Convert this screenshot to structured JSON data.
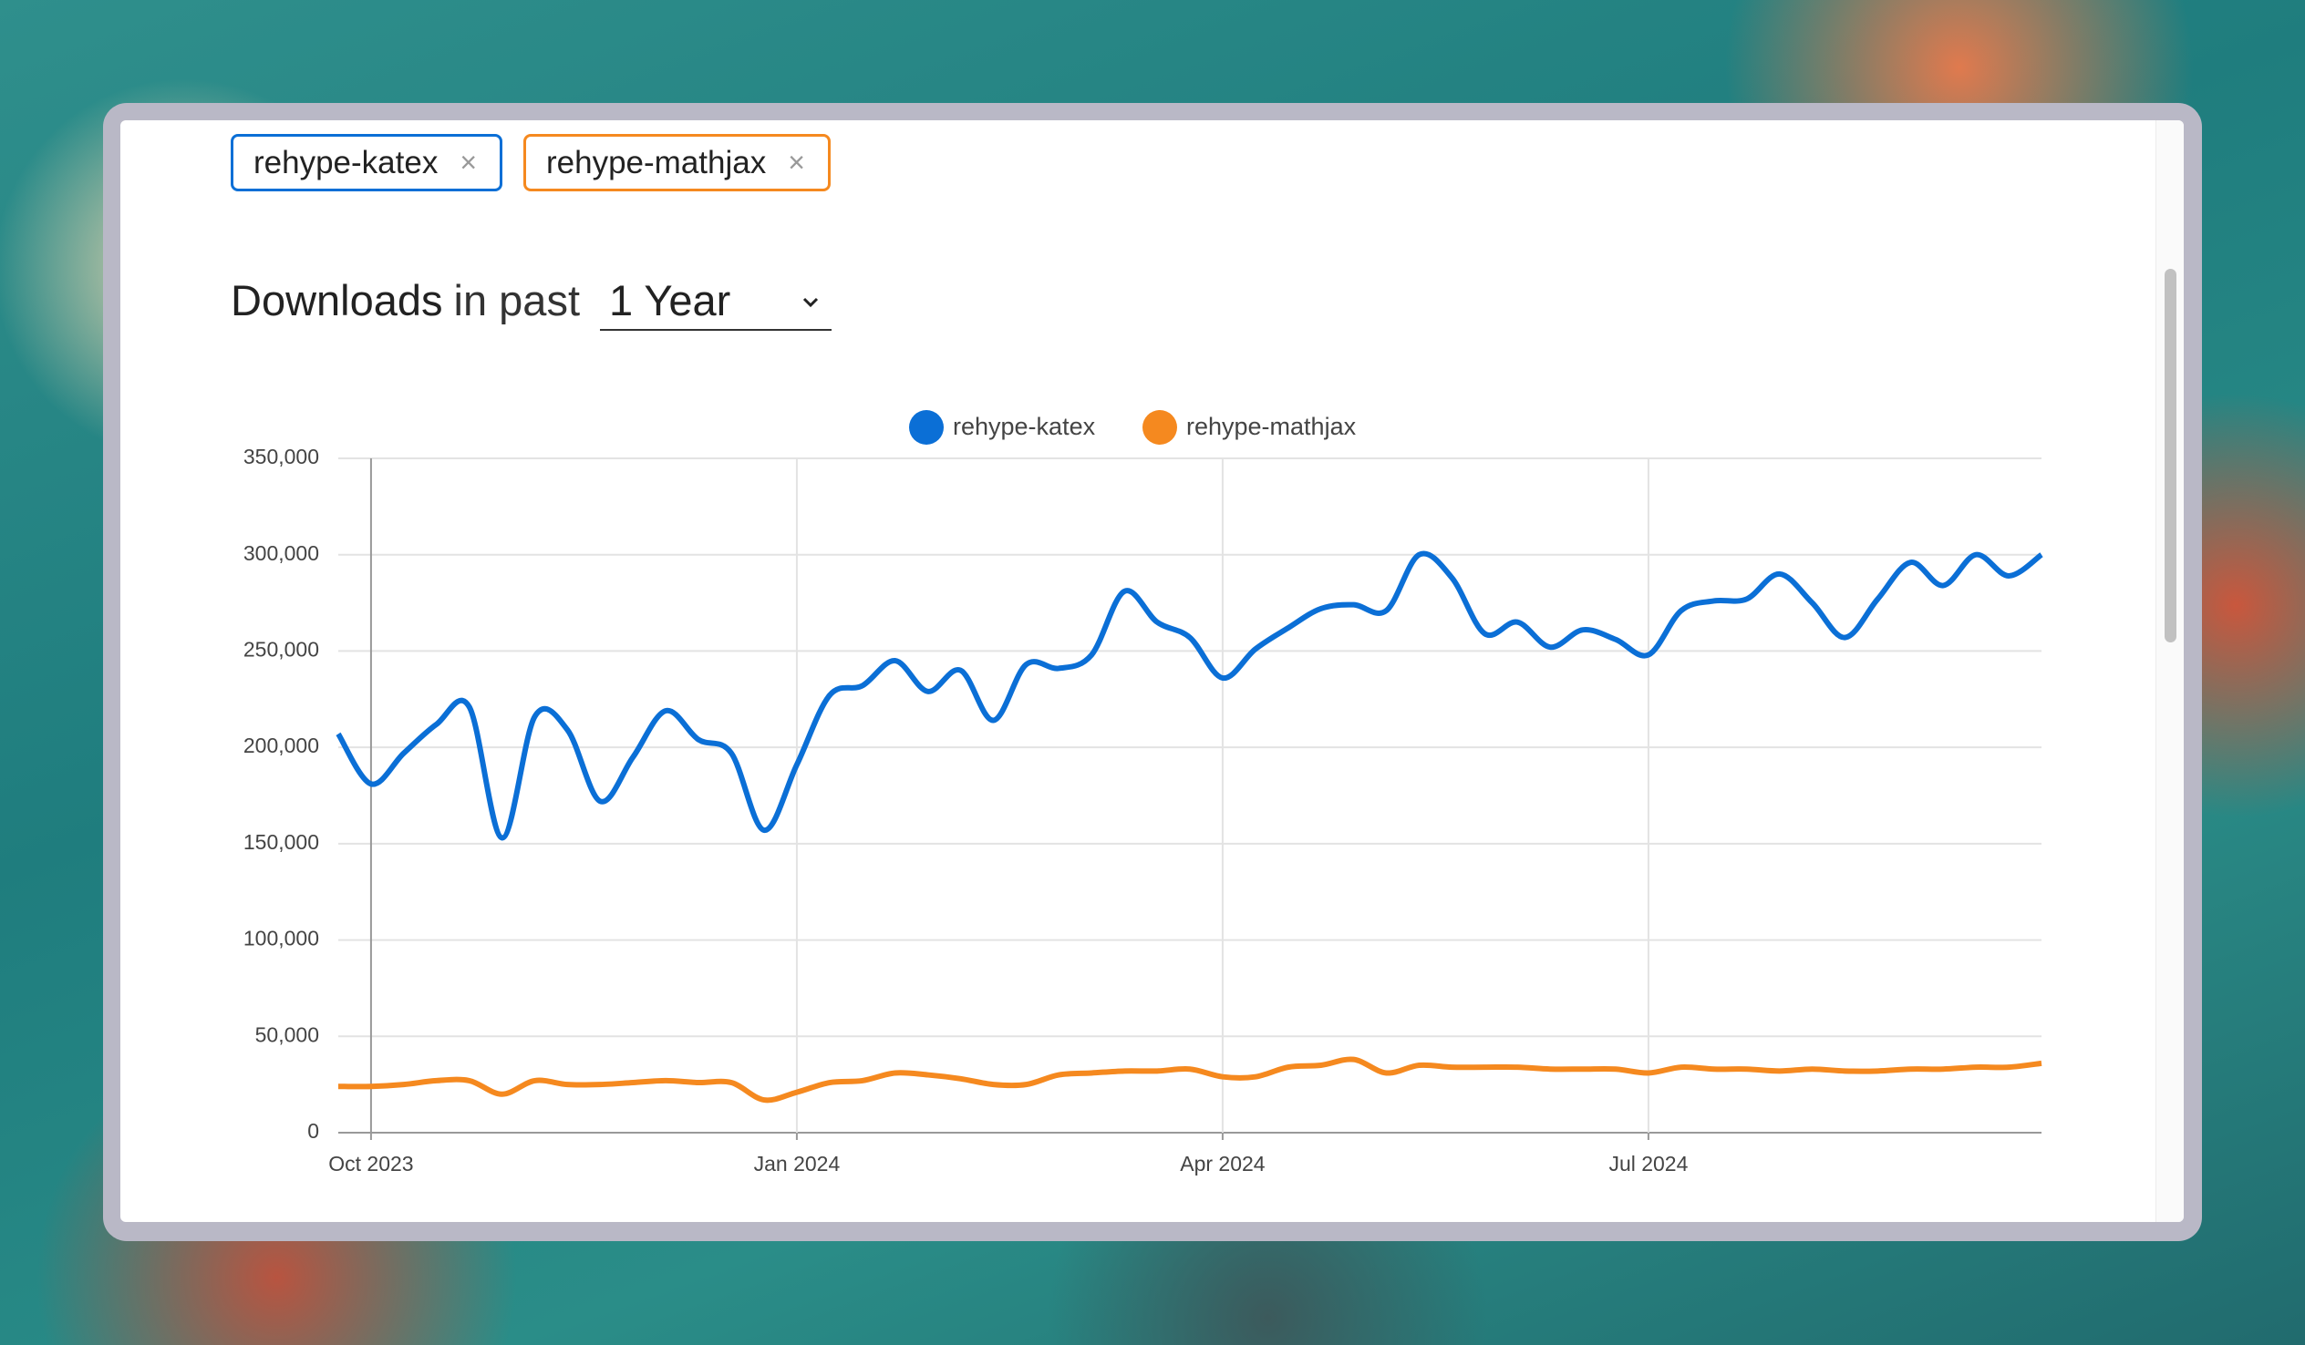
{
  "tags": [
    {
      "label": "rehype-katex",
      "remove": "×",
      "color": "#0b6fd6"
    },
    {
      "label": "rehype-mathjax",
      "remove": "×",
      "color": "#f5891f"
    }
  ],
  "heading": {
    "strong": "Downloads",
    "rest": "in past",
    "period": "1 Year"
  },
  "chart_data": {
    "type": "line",
    "categories": [
      null,
      "Oct 2023",
      null,
      null,
      null,
      null,
      null,
      null,
      null,
      null,
      null,
      null,
      null,
      null,
      "Jan 2024",
      null,
      null,
      null,
      null,
      null,
      null,
      null,
      null,
      null,
      null,
      null,
      null,
      "Apr 2024",
      null,
      null,
      null,
      null,
      null,
      null,
      null,
      null,
      null,
      null,
      null,
      null,
      "Jul 2024",
      null,
      null,
      null,
      null,
      null,
      null,
      null,
      null,
      null,
      null,
      null,
      null
    ],
    "series": [
      {
        "name": "rehype-katex",
        "color": "#0b6fd6",
        "values": [
          207000,
          181000,
          197000,
          212000,
          221000,
          153000,
          216000,
          209000,
          172000,
          195000,
          219000,
          204000,
          197000,
          157000,
          191000,
          227000,
          232000,
          245000,
          229000,
          240000,
          214000,
          243000,
          241000,
          248000,
          281000,
          265000,
          257000,
          236000,
          251000,
          262000,
          272000,
          274000,
          271000,
          300000,
          288000,
          259000,
          265000,
          252000,
          261000,
          256000,
          248000,
          271000,
          276000,
          277000,
          290000,
          275000,
          257000,
          277000,
          296000,
          284000,
          300000,
          289000,
          300000
        ]
      },
      {
        "name": "rehype-mathjax",
        "color": "#f5891f",
        "values": [
          24000,
          24000,
          25000,
          27000,
          27000,
          20000,
          27000,
          25000,
          25000,
          26000,
          27000,
          26000,
          26000,
          17000,
          21000,
          26000,
          27000,
          31000,
          30000,
          28000,
          25000,
          25000,
          30000,
          31000,
          32000,
          32000,
          33000,
          29000,
          29000,
          34000,
          35000,
          38000,
          31000,
          35000,
          34000,
          34000,
          34000,
          33000,
          33000,
          33000,
          31000,
          34000,
          33000,
          33000,
          32000,
          33000,
          32000,
          32000,
          33000,
          33000,
          34000,
          34000,
          36000
        ]
      }
    ],
    "ylim": [
      0,
      350000
    ],
    "yticks": [
      0,
      {
        "value": 50000,
        "label": "50,000"
      },
      {
        "value": 100000,
        "label": "100,000"
      },
      {
        "value": 150000,
        "label": "150,000"
      },
      {
        "value": 200000,
        "label": "200,000"
      },
      {
        "value": 250000,
        "label": "250,000"
      },
      {
        "value": 300000,
        "label": "300,000"
      },
      {
        "value": 350000,
        "label": "350,000"
      }
    ],
    "grid": true,
    "legend": "top"
  }
}
